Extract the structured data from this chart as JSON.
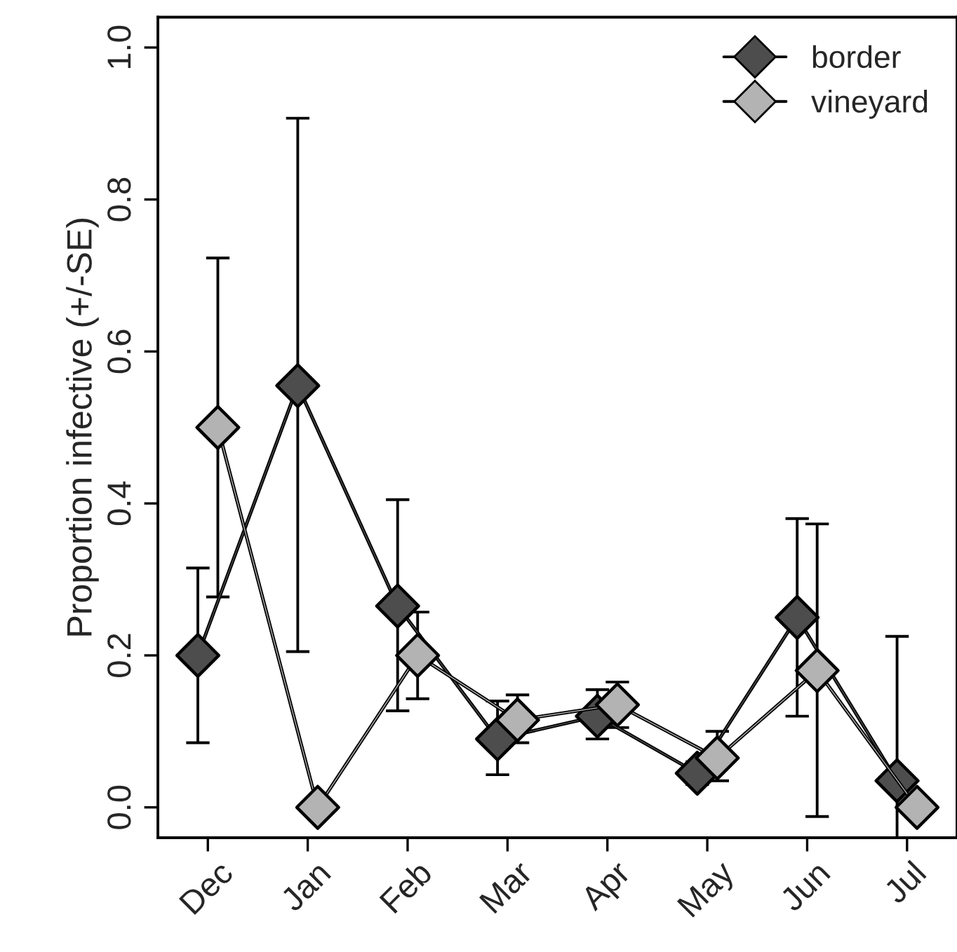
{
  "chart_data": {
    "type": "line",
    "ylabel": "Proportion infective (+/-SE)",
    "categories": [
      "Dec",
      "Jan",
      "Feb",
      "Mar",
      "Apr",
      "May",
      "Jun",
      "Jul"
    ],
    "series": [
      {
        "name": "border",
        "color": "#4d4d4d",
        "values": [
          0.2,
          0.555,
          0.265,
          0.09,
          0.12,
          0.045,
          0.25,
          0.035
        ],
        "errors": [
          [
            0.085,
            0.315
          ],
          [
            0.205,
            0.907
          ],
          [
            0.127,
            0.405
          ],
          [
            0.043,
            0.14
          ],
          [
            0.09,
            0.155
          ],
          [
            0.03,
            0.06
          ],
          [
            0.12,
            0.38
          ],
          [
            -0.04,
            0.225
          ]
        ]
      },
      {
        "name": "vineyard",
        "color": "#b3b3b3",
        "values": [
          0.5,
          0.0,
          0.2,
          0.115,
          0.135,
          0.065,
          0.18,
          0.0
        ],
        "errors": [
          [
            0.277,
            0.723
          ],
          null,
          [
            0.143,
            0.257
          ],
          [
            0.085,
            0.148
          ],
          [
            0.105,
            0.165
          ],
          [
            0.035,
            0.1
          ],
          [
            -0.012,
            0.373
          ],
          null
        ]
      }
    ],
    "ylim": [
      -0.04,
      1.04
    ],
    "yticks": [
      {
        "value": 0,
        "label": "0.0"
      },
      0.2,
      0.4,
      0.6,
      0.8,
      {
        "value": 1,
        "label": "1.0"
      }
    ],
    "marker": "diamond",
    "line_style": "solid",
    "legend": "top right",
    "grid": false
  }
}
